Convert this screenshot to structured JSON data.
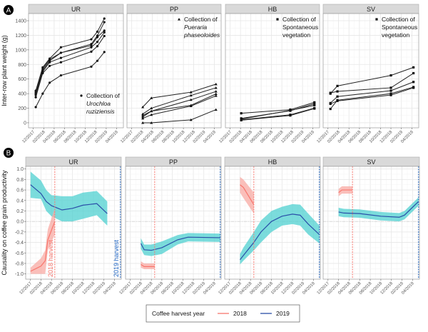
{
  "chart_data": [
    {
      "type": "line",
      "panel_label": "A",
      "ylabel": "Inter-row plant weight (g)",
      "yticks": [
        0,
        200,
        400,
        600,
        800,
        1000,
        1200,
        1400
      ],
      "xticks": [
        "12/2017",
        "02/2018",
        "04/2018",
        "06/2018",
        "08/2018",
        "10/2018",
        "12/2018",
        "02/2019",
        "04/2019"
      ],
      "grid": true,
      "panels": [
        {
          "strip": "UR",
          "marker": "circle",
          "annotation": [
            {
              "text": "Collection of",
              "italic": false
            },
            {
              "text": "Urochloa",
              "italic": true
            },
            {
              "text": "ruziziensis",
              "italic": true
            }
          ],
          "annotation_position": "bottom-right",
          "dates": [
            "2017-12-15",
            "2018-01-25",
            "2018-03-05",
            "2018-05-10",
            "2018-11-05",
            "2018-12-10",
            "2019-01-20"
          ],
          "series": [
            [
              440,
              760,
              880,
              1035,
              1145,
              1250,
              1430
            ],
            [
              420,
              740,
              870,
              960,
              1080,
              1195,
              1380
            ],
            [
              400,
              720,
              850,
              960,
              1060,
              1175,
              1265
            ],
            [
              380,
              700,
              830,
              890,
              1035,
              1110,
              1240
            ],
            [
              350,
              680,
              780,
              830,
              975,
              1050,
              1190
            ],
            [
              215,
              400,
              550,
              650,
              770,
              850,
              970
            ]
          ]
        },
        {
          "strip": "PP",
          "marker": "triangle",
          "annotation": [
            {
              "text": "Collection of",
              "italic": false
            },
            {
              "text": "Pueraria",
              "italic": true
            },
            {
              "text": "phaseoloides",
              "italic": true
            }
          ],
          "annotation_position": "top-right",
          "dates": [
            "2018-02-05",
            "2018-03-25",
            "2018-11-15",
            "2019-04-10"
          ],
          "series": [
            [
              215,
              340,
              420,
              530
            ],
            [
              120,
              200,
              375,
              480
            ],
            [
              100,
              160,
              315,
              430
            ],
            [
              80,
              160,
              240,
              395
            ],
            [
              60,
              110,
              230,
              370
            ],
            [
              0,
              0,
              40,
              180
            ]
          ]
        },
        {
          "strip": "HB",
          "marker": "square",
          "annotation": [
            {
              "text": "Collection of",
              "italic": false
            },
            {
              "text": "Spontaneous",
              "italic": false
            },
            {
              "text": "vegetation",
              "italic": false
            }
          ],
          "annotation_position": "top-right",
          "dates": [
            "2018-02-05",
            "2018-11-20",
            "2019-04-10"
          ],
          "series": [
            [
              130,
              180,
              280
            ],
            [
              60,
              165,
              260
            ],
            [
              50,
              170,
              240
            ],
            [
              40,
              110,
              200
            ],
            [
              35,
              100,
              195
            ]
          ]
        },
        {
          "strip": "SV",
          "marker": "square",
          "annotation": [
            {
              "text": "Collection of",
              "italic": false
            },
            {
              "text": "Spontaneous",
              "italic": false
            },
            {
              "text": "vegetation",
              "italic": false
            }
          ],
          "annotation_position": "top-right",
          "dates": [
            "2017-12-15",
            "2018-01-25",
            "2018-12-01",
            "2019-04-10"
          ],
          "series": [
            [
              400,
              505,
              650,
              760
            ],
            [
              410,
              430,
              480,
              680
            ],
            [
              270,
              360,
              440,
              560
            ],
            [
              190,
              310,
              400,
              490
            ],
            [
              260,
              300,
              380,
              480
            ]
          ]
        }
      ]
    },
    {
      "type": "area",
      "panel_label": "B",
      "ylabel": "Causality on coffee grain productivity",
      "yticks": [
        -1.0,
        -0.8,
        -0.6,
        -0.4,
        -0.2,
        0.0,
        0.2,
        0.4,
        0.6,
        0.8,
        1.0
      ],
      "ytick_labels": [
        "-1.0",
        "-0.8",
        "-0.6",
        "-0.4",
        "-0.2",
        "0.0",
        "0.2",
        "0.4",
        "0.6",
        "0.8",
        "1.0"
      ],
      "xticks": [
        "12/2017",
        "02/2018",
        "04/2018",
        "06/2018",
        "08/2018",
        "10/2018",
        "12/2018",
        "02/2019",
        "04/2019"
      ],
      "grid": true,
      "harvest_lines": [
        {
          "label": "2018 harvest",
          "date": "2018-04-20",
          "color": "#f8766d"
        },
        {
          "label": "2019 harvest",
          "date": "2019-05-05",
          "color": "#2166c4"
        }
      ],
      "legend": {
        "title": "Coffee harvest year",
        "position": "bottom",
        "entries": [
          {
            "name": "2018",
            "color": "#f8766d"
          },
          {
            "name": "2019",
            "color": "#2a4fa8"
          }
        ]
      },
      "colors": {
        "band_2018": "#f8a9a3",
        "band_2019": "#4fd0d0"
      },
      "panels": [
        {
          "strip": "UR",
          "show_harvest_labels": true,
          "y2018": {
            "dates": [
              "2017-12-01",
              "2018-02-01",
              "2018-02-25",
              "2018-03-10",
              "2018-04-20"
            ],
            "fit": [
              -0.95,
              -0.85,
              -0.75,
              -0.35,
              0.0
            ],
            "lower": [
              -1.0,
              -1.0,
              -1.0,
              -0.55,
              -0.25
            ],
            "upper": [
              -0.88,
              -0.7,
              -0.55,
              -0.15,
              0.25
            ]
          },
          "y2019": {
            "dates": [
              "2017-12-01",
              "2018-02-01",
              "2018-03-01",
              "2018-04-01",
              "2018-06-01",
              "2018-08-01",
              "2018-10-01",
              "2018-12-20",
              "2019-02-20"
            ],
            "fit": [
              0.7,
              0.53,
              0.38,
              0.3,
              0.22,
              0.25,
              0.31,
              0.34,
              0.15
            ],
            "lower": [
              0.45,
              0.43,
              0.2,
              0.1,
              0.0,
              0.0,
              0.05,
              0.12,
              -0.08
            ],
            "upper": [
              0.95,
              0.78,
              0.6,
              0.5,
              0.48,
              0.48,
              0.55,
              0.58,
              0.38
            ]
          }
        },
        {
          "strip": "PP",
          "show_harvest_labels": false,
          "y2018": {
            "dates": [
              "2018-02-01",
              "2018-02-20",
              "2018-04-20"
            ],
            "fit": [
              -0.82,
              -0.86,
              -0.86
            ],
            "lower": [
              -0.88,
              -0.91,
              -0.91
            ],
            "upper": [
              -0.76,
              -0.8,
              -0.8
            ]
          },
          "y2019": {
            "dates": [
              "2018-02-01",
              "2018-02-20",
              "2018-04-01",
              "2018-06-01",
              "2018-09-01",
              "2018-11-01",
              "2019-05-05"
            ],
            "fit": [
              -0.42,
              -0.54,
              -0.55,
              -0.5,
              -0.35,
              -0.3,
              -0.31
            ],
            "lower": [
              -0.52,
              -0.64,
              -0.66,
              -0.62,
              -0.44,
              -0.38,
              -0.39
            ],
            "upper": [
              -0.32,
              -0.44,
              -0.44,
              -0.38,
              -0.26,
              -0.22,
              -0.23
            ]
          }
        },
        {
          "strip": "HB",
          "show_harvest_labels": false,
          "y2018": {
            "dates": [
              "2018-02-01",
              "2018-02-20",
              "2018-04-20"
            ],
            "fit": [
              0.7,
              0.65,
              0.32
            ],
            "lower": [
              0.55,
              0.45,
              0.15
            ],
            "upper": [
              0.85,
              0.8,
              0.55
            ]
          },
          "y2019": {
            "dates": [
              "2018-02-01",
              "2018-02-20",
              "2018-04-20",
              "2018-06-01",
              "2018-08-01",
              "2018-10-01",
              "2018-12-01",
              "2019-01-15",
              "2019-03-01",
              "2019-05-05"
            ],
            "fit": [
              -0.73,
              -0.65,
              -0.4,
              -0.2,
              0.0,
              0.1,
              0.14,
              0.12,
              -0.05,
              -0.25
            ],
            "lower": [
              -0.82,
              -0.75,
              -0.55,
              -0.4,
              -0.2,
              -0.08,
              -0.05,
              -0.08,
              -0.25,
              -0.42
            ],
            "upper": [
              -0.62,
              -0.5,
              -0.2,
              0.02,
              0.2,
              0.28,
              0.33,
              0.32,
              0.15,
              -0.08
            ]
          }
        },
        {
          "strip": "SV",
          "show_harvest_labels": false,
          "y2018": {
            "dates": [
              "2018-02-01",
              "2018-02-20",
              "2018-04-20"
            ],
            "fit": [
              0.55,
              0.6,
              0.6
            ],
            "lower": [
              0.48,
              0.53,
              0.53
            ],
            "upper": [
              0.62,
              0.67,
              0.67
            ]
          },
          "y2019": {
            "dates": [
              "2018-02-01",
              "2018-03-01",
              "2018-06-01",
              "2018-10-01",
              "2019-01-15",
              "2019-02-15",
              "2019-05-05"
            ],
            "fit": [
              0.18,
              0.16,
              0.15,
              0.1,
              0.08,
              0.12,
              0.38
            ],
            "lower": [
              0.1,
              0.08,
              0.07,
              0.02,
              0.0,
              0.04,
              0.3
            ],
            "upper": [
              0.26,
              0.24,
              0.23,
              0.18,
              0.16,
              0.2,
              0.46
            ]
          }
        }
      ]
    }
  ]
}
